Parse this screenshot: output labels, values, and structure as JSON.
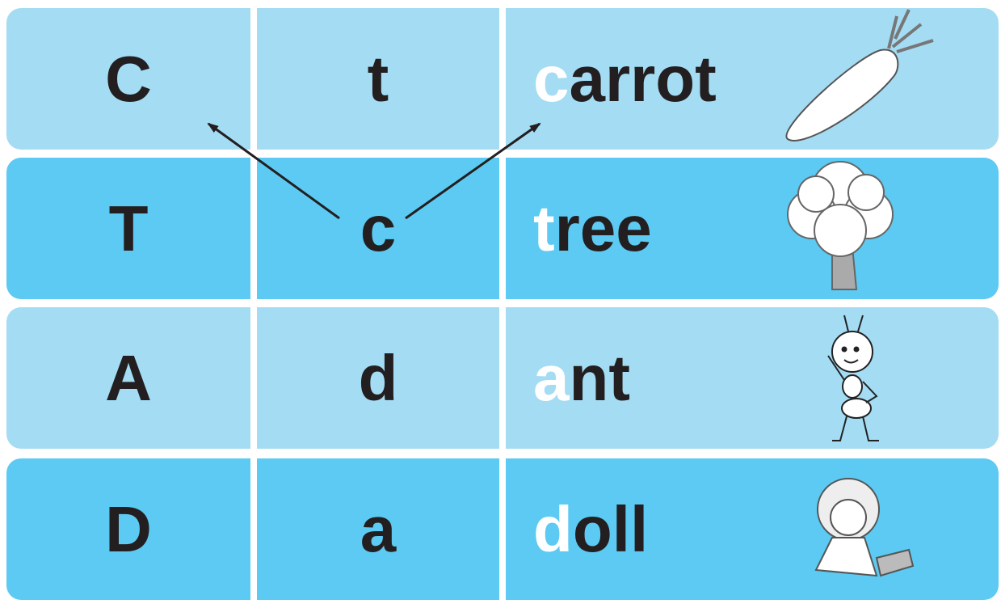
{
  "table": {
    "rows": [
      {
        "capital": "C",
        "small": "t",
        "word_first": "c",
        "word_rest": "arrot"
      },
      {
        "capital": "T",
        "small": "c",
        "word_first": "t",
        "word_rest": "ree"
      },
      {
        "capital": "A",
        "small": "d",
        "word_first": "a",
        "word_rest": "nt"
      },
      {
        "capital": "D",
        "small": "a",
        "word_first": "d",
        "word_rest": "oll"
      }
    ]
  }
}
